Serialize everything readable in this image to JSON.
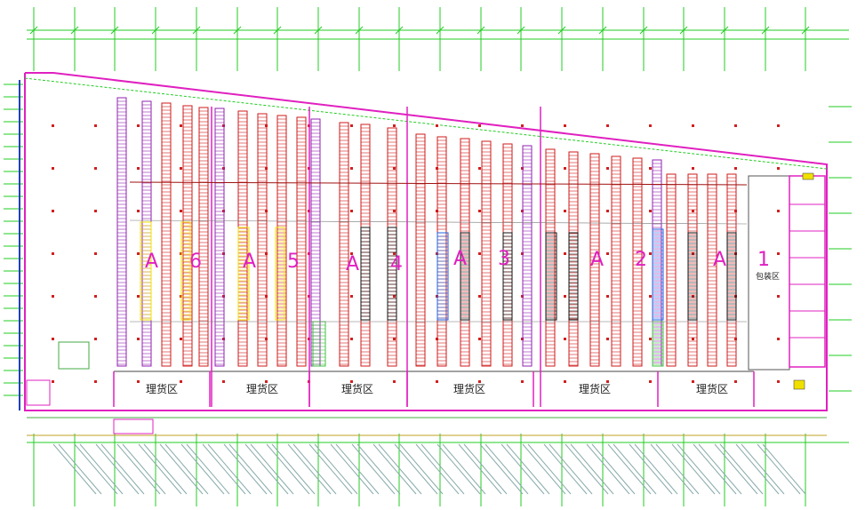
{
  "zones": [
    {
      "label": "A 6"
    },
    {
      "label": "A 5"
    },
    {
      "label": "A 4"
    },
    {
      "label": "A 3"
    },
    {
      "label": "A 2"
    },
    {
      "label": "A 1"
    }
  ],
  "sorting_area_label": "理货区",
  "packing_area_label": "包装区",
  "colors": {
    "grid": "#22cc22",
    "wall": "#e020c0",
    "rack_red": "#d01818",
    "rack_purple": "#9020b0",
    "rack_blue": "#2060e0",
    "rack_black": "#111111",
    "rack_yellow": "#f0e000",
    "rack_green": "#40c040",
    "beam": "#a01010"
  }
}
